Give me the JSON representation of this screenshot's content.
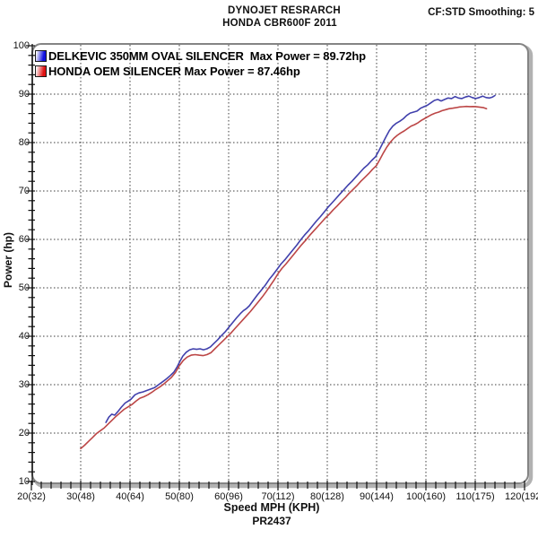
{
  "header": {
    "title_line1": "DYNOJET RESRARCH",
    "title_line2": "HONDA CBR600F 2011",
    "smoothing": "CF:STD Smoothing: 5"
  },
  "legend": [
    {
      "label": "DELKEVIC 350MM OVAL SILENCER  Max Power = 89.72hp",
      "color": "#1212e0"
    },
    {
      "label": "HONDA OEM SILENCER Max Power = 87.46hp",
      "color": "#e01212"
    }
  ],
  "chart_data": {
    "type": "line",
    "title": "DYNOJET RESRARCH HONDA CBR600F 2011",
    "xlabel": "Speed MPH (KPH)",
    "ylabel": "Power (hp)",
    "footer": "PR2437",
    "xlim": [
      20,
      120
    ],
    "ylim": [
      10,
      100
    ],
    "grid": true,
    "legend_position": "top-left",
    "x_ticks": [
      {
        "mph": 20,
        "label": "20(32)"
      },
      {
        "mph": 30,
        "label": "30(48)"
      },
      {
        "mph": 40,
        "label": "40(64)"
      },
      {
        "mph": 50,
        "label": "50(80)"
      },
      {
        "mph": 60,
        "label": "60(96)"
      },
      {
        "mph": 70,
        "label": "70(112)"
      },
      {
        "mph": 80,
        "label": "80(128)"
      },
      {
        "mph": 90,
        "label": "90(144)"
      },
      {
        "mph": 100,
        "label": "100(160)"
      },
      {
        "mph": 110,
        "label": "110(175)"
      },
      {
        "mph": 120,
        "label": "120(192)"
      }
    ],
    "y_ticks": [
      10,
      20,
      30,
      40,
      50,
      60,
      70,
      80,
      90,
      100
    ],
    "minor_tick_step_x": 2,
    "minor_tick_step_y": 2,
    "series": [
      {
        "name": "DELKEVIC 350MM OVAL SILENCER",
        "max_power_hp": 89.72,
        "color": "#4040ac",
        "points": [
          [
            35.1,
            22.2
          ],
          [
            35.7,
            23.3
          ],
          [
            36.3,
            23.9
          ],
          [
            36.9,
            23.7
          ],
          [
            37.5,
            24.4
          ],
          [
            38.2,
            25.3
          ],
          [
            39,
            26.2
          ],
          [
            39.6,
            26.6
          ],
          [
            40.2,
            27.0
          ],
          [
            41,
            27.9
          ],
          [
            41.8,
            28.3
          ],
          [
            42.6,
            28.5
          ],
          [
            43.4,
            28.8
          ],
          [
            44.2,
            29.1
          ],
          [
            45,
            29.4
          ],
          [
            45.8,
            30.0
          ],
          [
            46.6,
            30.6
          ],
          [
            47.4,
            31.2
          ],
          [
            48.2,
            31.9
          ],
          [
            48.9,
            32.6
          ],
          [
            49.5,
            33.6
          ],
          [
            50.1,
            34.8
          ],
          [
            50.7,
            35.9
          ],
          [
            51.4,
            36.7
          ],
          [
            52.1,
            37.2
          ],
          [
            52.8,
            37.4
          ],
          [
            53.5,
            37.3
          ],
          [
            54.2,
            37.4
          ],
          [
            54.9,
            37.2
          ],
          [
            55.6,
            37.4
          ],
          [
            56.3,
            37.8
          ],
          [
            57,
            38.5
          ],
          [
            57.8,
            39.3
          ],
          [
            58.6,
            40.2
          ],
          [
            59.3,
            40.9
          ],
          [
            60,
            41.8
          ],
          [
            60.8,
            42.8
          ],
          [
            61.6,
            43.8
          ],
          [
            62.4,
            44.7
          ],
          [
            63,
            45.3
          ],
          [
            63.6,
            45.7
          ],
          [
            64.2,
            46.3
          ],
          [
            65,
            47.4
          ],
          [
            65.8,
            48.5
          ],
          [
            66.6,
            49.5
          ],
          [
            67.4,
            50.5
          ],
          [
            68.2,
            51.7
          ],
          [
            69,
            52.7
          ],
          [
            69.8,
            53.8
          ],
          [
            70.6,
            54.9
          ],
          [
            71.4,
            55.8
          ],
          [
            72.2,
            56.8
          ],
          [
            73,
            57.8
          ],
          [
            73.8,
            58.8
          ],
          [
            74.6,
            59.9
          ],
          [
            75.4,
            60.9
          ],
          [
            76.2,
            61.8
          ],
          [
            77,
            62.8
          ],
          [
            77.8,
            63.8
          ],
          [
            78.6,
            64.7
          ],
          [
            79.4,
            65.7
          ],
          [
            80.2,
            66.7
          ],
          [
            81,
            67.6
          ],
          [
            81.8,
            68.5
          ],
          [
            82.6,
            69.4
          ],
          [
            83.4,
            70.3
          ],
          [
            84.2,
            71.2
          ],
          [
            85,
            72.0
          ],
          [
            85.8,
            72.9
          ],
          [
            86.6,
            73.8
          ],
          [
            87.4,
            74.7
          ],
          [
            88.2,
            75.4
          ],
          [
            89,
            76.3
          ],
          [
            89.8,
            77.1
          ],
          [
            90.5,
            78.4
          ],
          [
            91.2,
            79.8
          ],
          [
            91.9,
            81.2
          ],
          [
            92.6,
            82.5
          ],
          [
            93.3,
            83.4
          ],
          [
            94,
            84.0
          ],
          [
            94.7,
            84.4
          ],
          [
            95.4,
            84.9
          ],
          [
            96.1,
            85.6
          ],
          [
            96.8,
            86.1
          ],
          [
            97.5,
            86.3
          ],
          [
            98.2,
            86.5
          ],
          [
            98.9,
            87.1
          ],
          [
            99.6,
            87.4
          ],
          [
            100.3,
            87.7
          ],
          [
            101,
            88.2
          ],
          [
            101.7,
            88.7
          ],
          [
            102.4,
            88.9
          ],
          [
            103.1,
            88.6
          ],
          [
            103.8,
            88.9
          ],
          [
            104.5,
            89.2
          ],
          [
            105.2,
            89.1
          ],
          [
            105.9,
            89.5
          ],
          [
            106.6,
            89.2
          ],
          [
            107.3,
            89.1
          ],
          [
            108,
            89.4
          ],
          [
            108.7,
            89.6
          ],
          [
            109.4,
            89.3
          ],
          [
            110.1,
            89.1
          ],
          [
            110.8,
            89.3
          ],
          [
            111.5,
            89.6
          ],
          [
            112.2,
            89.3
          ],
          [
            112.9,
            89.2
          ],
          [
            113.5,
            89.4
          ],
          [
            114,
            89.72
          ]
        ]
      },
      {
        "name": "HONDA OEM SILENCER",
        "max_power_hp": 87.46,
        "color": "#bc4646",
        "points": [
          [
            30,
            16.8
          ],
          [
            30.8,
            17.5
          ],
          [
            31.6,
            18.3
          ],
          [
            32.4,
            19.1
          ],
          [
            33.2,
            19.9
          ],
          [
            34,
            20.5
          ],
          [
            34.8,
            21.1
          ],
          [
            35.6,
            21.9
          ],
          [
            36.4,
            22.7
          ],
          [
            37.2,
            23.5
          ],
          [
            38,
            24.2
          ],
          [
            38.8,
            24.9
          ],
          [
            39.6,
            25.4
          ],
          [
            40.4,
            25.9
          ],
          [
            41.2,
            26.6
          ],
          [
            42,
            27.2
          ],
          [
            42.8,
            27.5
          ],
          [
            43.6,
            27.9
          ],
          [
            44.4,
            28.4
          ],
          [
            45.2,
            29.0
          ],
          [
            46,
            29.5
          ],
          [
            46.8,
            30.1
          ],
          [
            47.6,
            30.8
          ],
          [
            48.4,
            31.5
          ],
          [
            49.2,
            32.5
          ],
          [
            50,
            33.9
          ],
          [
            50.8,
            35.0
          ],
          [
            51.6,
            35.7
          ],
          [
            52.4,
            36.1
          ],
          [
            53.2,
            36.2
          ],
          [
            54,
            36.1
          ],
          [
            54.8,
            36.0
          ],
          [
            55.6,
            36.2
          ],
          [
            56.4,
            36.6
          ],
          [
            57.2,
            37.4
          ],
          [
            58,
            38.2
          ],
          [
            58.8,
            39.0
          ],
          [
            59.6,
            39.8
          ],
          [
            60.4,
            40.6
          ],
          [
            61.2,
            41.5
          ],
          [
            62,
            42.4
          ],
          [
            62.8,
            43.3
          ],
          [
            63.6,
            44.2
          ],
          [
            64.4,
            45.1
          ],
          [
            65.2,
            46.1
          ],
          [
            66,
            47.1
          ],
          [
            66.8,
            48.1
          ],
          [
            67.6,
            49.2
          ],
          [
            68.4,
            50.4
          ],
          [
            69.2,
            51.6
          ],
          [
            70,
            52.9
          ],
          [
            70.8,
            54.0
          ],
          [
            71.6,
            54.9
          ],
          [
            72.4,
            55.9
          ],
          [
            73.2,
            56.9
          ],
          [
            74,
            57.9
          ],
          [
            74.8,
            58.9
          ],
          [
            75.6,
            59.8
          ],
          [
            76.4,
            60.8
          ],
          [
            77.2,
            61.7
          ],
          [
            78,
            62.6
          ],
          [
            78.8,
            63.5
          ],
          [
            79.6,
            64.4
          ],
          [
            80.4,
            65.2
          ],
          [
            81.2,
            66.1
          ],
          [
            82,
            66.9
          ],
          [
            82.8,
            67.8
          ],
          [
            83.6,
            68.6
          ],
          [
            84.4,
            69.5
          ],
          [
            85.2,
            70.3
          ],
          [
            86,
            71.1
          ],
          [
            86.8,
            72.0
          ],
          [
            87.6,
            72.8
          ],
          [
            88.4,
            73.6
          ],
          [
            89.2,
            74.5
          ],
          [
            90,
            75.3
          ],
          [
            90.7,
            76.6
          ],
          [
            91.4,
            77.9
          ],
          [
            92.1,
            79.1
          ],
          [
            92.8,
            80.1
          ],
          [
            93.5,
            80.9
          ],
          [
            94.2,
            81.5
          ],
          [
            94.9,
            82.0
          ],
          [
            95.6,
            82.4
          ],
          [
            96.3,
            82.9
          ],
          [
            97,
            83.4
          ],
          [
            97.7,
            83.7
          ],
          [
            98.4,
            84.1
          ],
          [
            99.1,
            84.6
          ],
          [
            99.8,
            85.0
          ],
          [
            100.5,
            85.4
          ],
          [
            101.2,
            85.8
          ],
          [
            101.9,
            86.1
          ],
          [
            102.6,
            86.3
          ],
          [
            103.3,
            86.6
          ],
          [
            104,
            86.8
          ],
          [
            104.7,
            87.0
          ],
          [
            105.4,
            87.1
          ],
          [
            106.1,
            87.2
          ],
          [
            106.8,
            87.35
          ],
          [
            107.5,
            87.4
          ],
          [
            108.2,
            87.46
          ],
          [
            108.9,
            87.42
          ],
          [
            109.6,
            87.44
          ],
          [
            110.3,
            87.38
          ],
          [
            111,
            87.3
          ],
          [
            111.7,
            87.2
          ],
          [
            112.3,
            87.0
          ]
        ]
      }
    ],
    "styles": {
      "grid_color": "#3c3c3c",
      "axis_color": "#111111",
      "frame_color": "#848484",
      "frame_shadow_color": "#b2b2b2",
      "background": "#ffffff"
    }
  }
}
